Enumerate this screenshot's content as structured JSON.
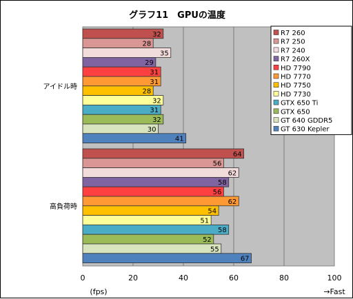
{
  "chart_data": {
    "type": "bar",
    "orientation": "horizontal",
    "title": "グラフ11　GPUの温度",
    "categories": [
      "アイドル時",
      "高負荷時"
    ],
    "series": [
      {
        "name": "R7 260",
        "color": "#c0504d",
        "values": [
          32,
          64
        ]
      },
      {
        "name": "R7 250",
        "color": "#da9694",
        "values": [
          28,
          56
        ]
      },
      {
        "name": "R7 240",
        "color": "#f2dcdb",
        "values": [
          35,
          62
        ]
      },
      {
        "name": "R7 260X",
        "color": "#8064a2",
        "values": [
          29,
          58
        ]
      },
      {
        "name": "HD 7790",
        "color": "#ff4040",
        "values": [
          31,
          56
        ]
      },
      {
        "name": "HD 7770",
        "color": "#ff9933",
        "values": [
          31,
          62
        ]
      },
      {
        "name": "HD 7750",
        "color": "#ffc000",
        "values": [
          28,
          54
        ]
      },
      {
        "name": "HD 7730",
        "color": "#ffff99",
        "values": [
          32,
          51
        ]
      },
      {
        "name": "GTX 650 Ti",
        "color": "#4bacc6",
        "values": [
          31,
          58
        ]
      },
      {
        "name": "GTX 650",
        "color": "#9bbb59",
        "values": [
          32,
          52
        ]
      },
      {
        "name": "GT 640 GDDR5",
        "color": "#d7e4bd",
        "values": [
          30,
          55
        ]
      },
      {
        "name": "GT 630 Kepler",
        "color": "#4f81bd",
        "values": [
          41,
          67
        ]
      }
    ],
    "xlim": [
      0,
      100
    ],
    "xticks": [
      0,
      20,
      40,
      60,
      80,
      100
    ],
    "xlabel": "(fps)",
    "direction_label": "→Fast",
    "legend_position": "top-right",
    "grid": true,
    "plot_background": "#c0c0c0"
  }
}
